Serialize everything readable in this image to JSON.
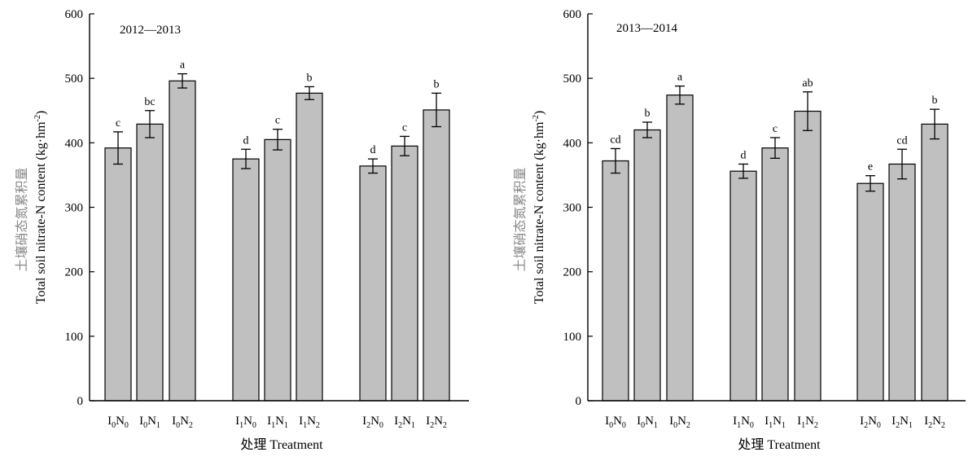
{
  "chart_data": [
    {
      "type": "bar",
      "title": "2012—2013",
      "ylabel_cn": "土壤硝态氮累积量",
      "ylabel_en": "Total soil nitrate-N content (kg·hm",
      "ylabel_sup": "-2",
      "ylabel_close": ")",
      "xlabel": "处理 Treatment",
      "ylim": [
        0,
        600
      ],
      "yticks": [
        "0",
        "100",
        "200",
        "300",
        "400",
        "500",
        "600"
      ],
      "categories": [
        {
          "base1": "I",
          "sub1": "0",
          "base2": "N",
          "sub2": "0"
        },
        {
          "base1": "I",
          "sub1": "0",
          "base2": "N",
          "sub2": "1"
        },
        {
          "base1": "I",
          "sub1": "0",
          "base2": "N",
          "sub2": "2"
        },
        {
          "base1": "I",
          "sub1": "1",
          "base2": "N",
          "sub2": "0"
        },
        {
          "base1": "I",
          "sub1": "1",
          "base2": "N",
          "sub2": "1"
        },
        {
          "base1": "I",
          "sub1": "1",
          "base2": "N",
          "sub2": "2"
        },
        {
          "base1": "I",
          "sub1": "2",
          "base2": "N",
          "sub2": "0"
        },
        {
          "base1": "I",
          "sub1": "2",
          "base2": "N",
          "sub2": "1"
        },
        {
          "base1": "I",
          "sub1": "2",
          "base2": "N",
          "sub2": "2"
        }
      ],
      "values": [
        392,
        429,
        496,
        375,
        405,
        477,
        364,
        395,
        451
      ],
      "errors": [
        25,
        21,
        11,
        15,
        16,
        10,
        11,
        15,
        26
      ],
      "labels": [
        "c",
        "bc",
        "a",
        "d",
        "c",
        "b",
        "d",
        "c",
        "b"
      ],
      "bar_color": "#c0c0c0",
      "grid": false,
      "legend": "none"
    },
    {
      "type": "bar",
      "title": "2013—2014",
      "ylabel_cn": "土壤硝态氮累积量",
      "ylabel_en": "Total soil nitrate-N content (kg·hm",
      "ylabel_sup": "-2",
      "ylabel_close": ")",
      "xlabel": "处理 Treatment",
      "ylim": [
        0,
        600
      ],
      "yticks": [
        "0",
        "100",
        "200",
        "300",
        "400",
        "500",
        "600"
      ],
      "categories": [
        {
          "base1": "I",
          "sub1": "0",
          "base2": "N",
          "sub2": "0"
        },
        {
          "base1": "I",
          "sub1": "0",
          "base2": "N",
          "sub2": "1"
        },
        {
          "base1": "I",
          "sub1": "0",
          "base2": "N",
          "sub2": "2"
        },
        {
          "base1": "I",
          "sub1": "1",
          "base2": "N",
          "sub2": "0"
        },
        {
          "base1": "I",
          "sub1": "1",
          "base2": "N",
          "sub2": "1"
        },
        {
          "base1": "I",
          "sub1": "1",
          "base2": "N",
          "sub2": "2"
        },
        {
          "base1": "I",
          "sub1": "2",
          "base2": "N",
          "sub2": "0"
        },
        {
          "base1": "I",
          "sub1": "2",
          "base2": "N",
          "sub2": "1"
        },
        {
          "base1": "I",
          "sub1": "2",
          "base2": "N",
          "sub2": "2"
        }
      ],
      "values": [
        372,
        420,
        474,
        356,
        392,
        449,
        337,
        367,
        429
      ],
      "errors": [
        19,
        12,
        14,
        11,
        16,
        30,
        12,
        23,
        23
      ],
      "labels": [
        "cd",
        "b",
        "a",
        "d",
        "c",
        "ab",
        "e",
        "cd",
        "b"
      ],
      "bar_color": "#c0c0c0",
      "grid": false,
      "legend": "none"
    }
  ]
}
